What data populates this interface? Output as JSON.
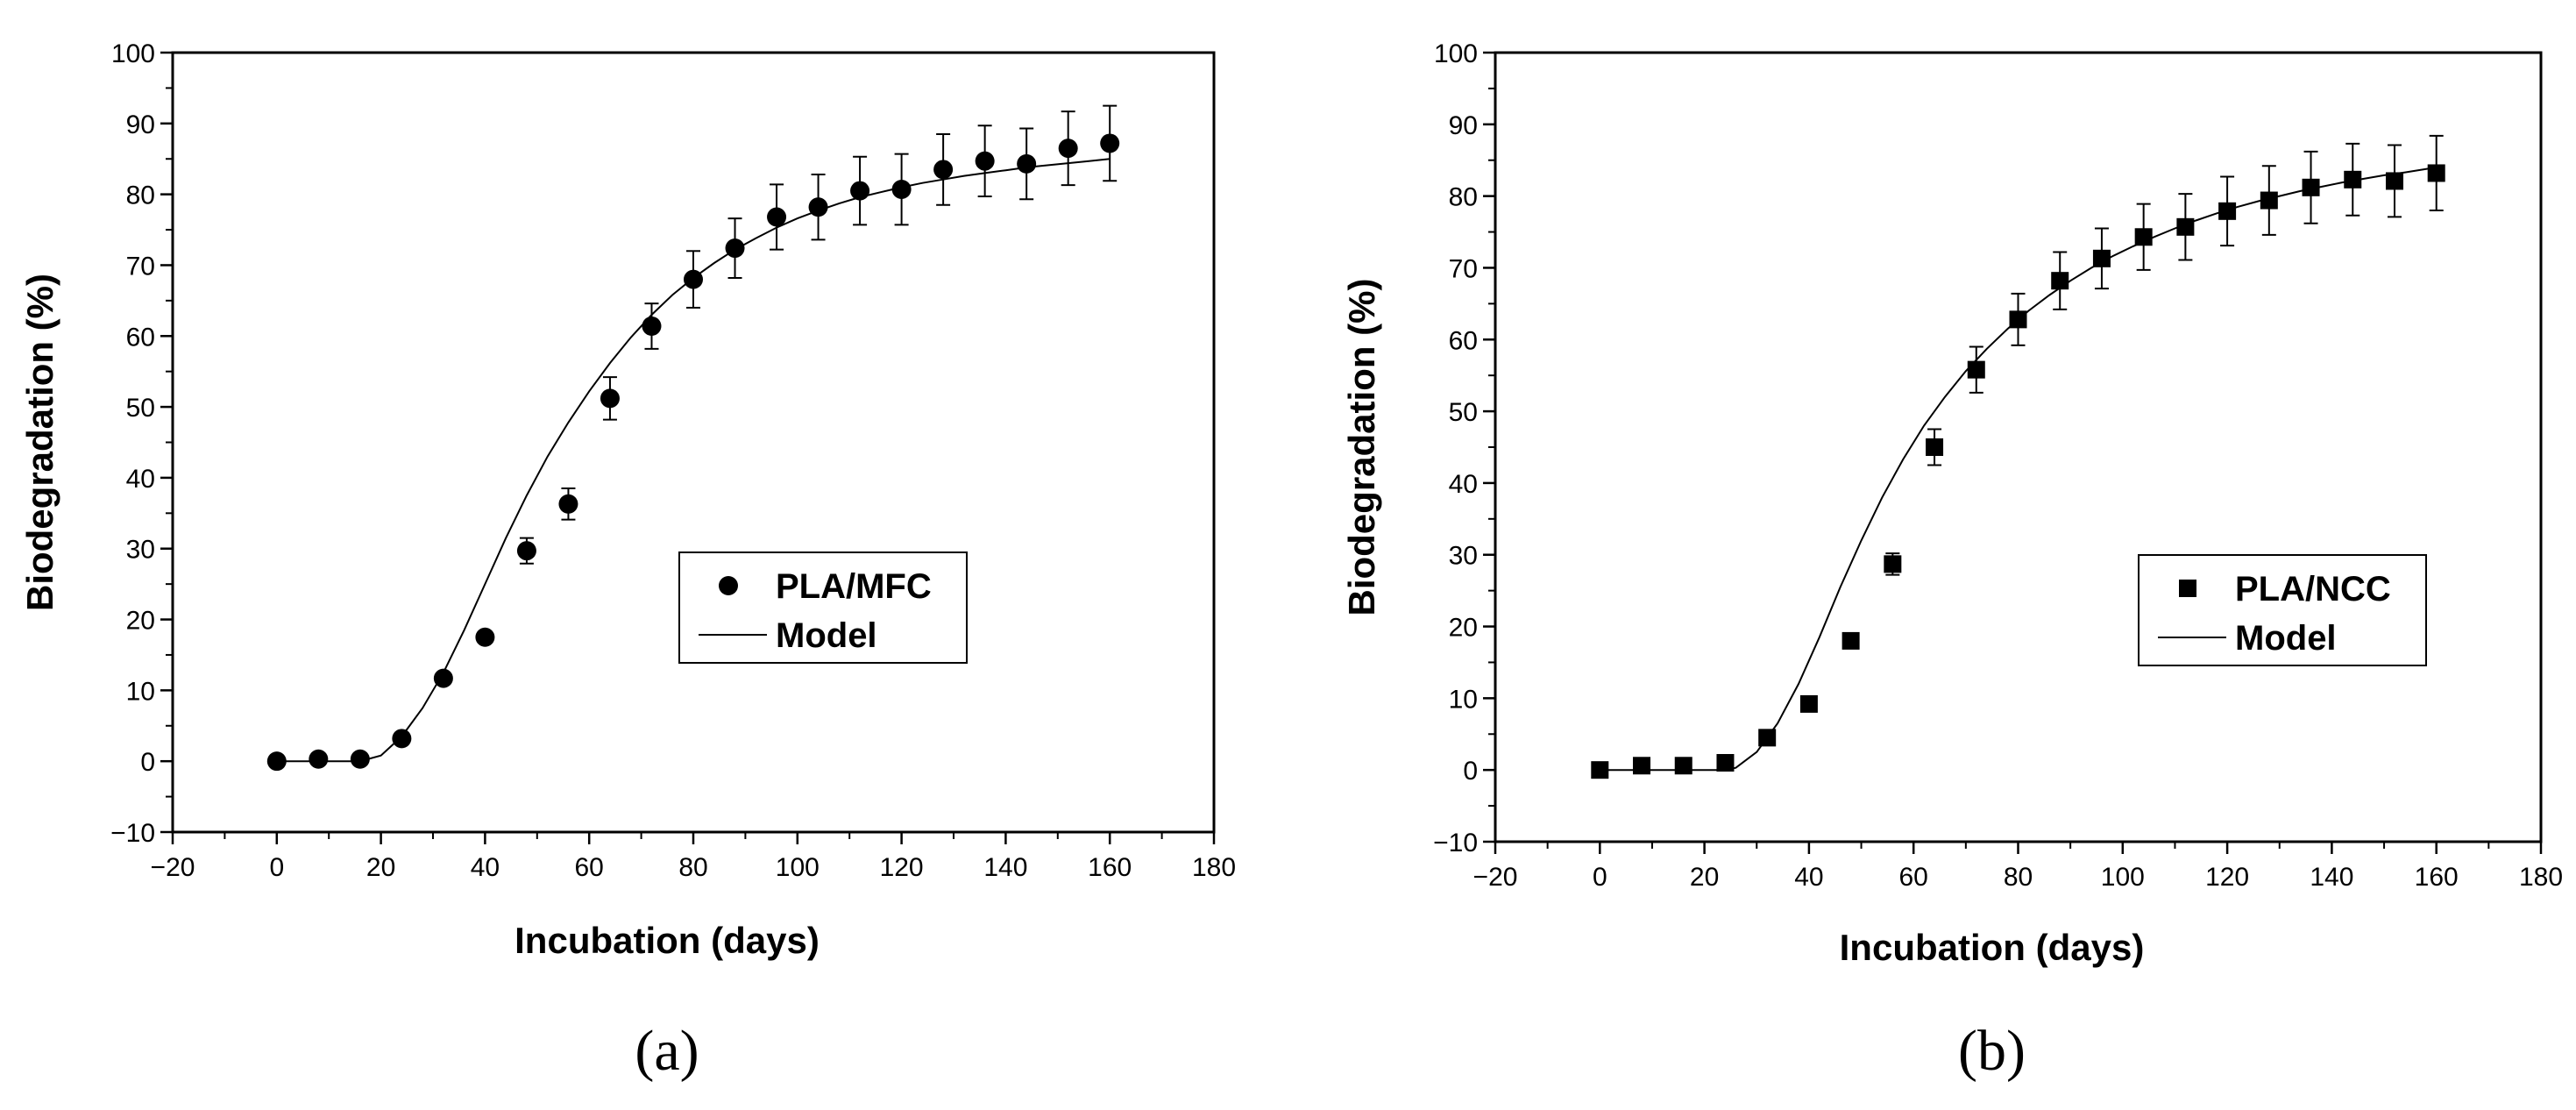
{
  "chart_data": [
    {
      "type": "scatter",
      "panel_label": "(a)",
      "xlabel": "Incubation (days)",
      "ylabel": "Biodegradation (%)",
      "xlim": [
        -20,
        180
      ],
      "ylim": [
        -10,
        100
      ],
      "xticks": [
        -20,
        0,
        20,
        40,
        60,
        80,
        100,
        120,
        140,
        160,
        180
      ],
      "yticks": [
        -10,
        0,
        10,
        20,
        30,
        40,
        50,
        60,
        70,
        80,
        90,
        100
      ],
      "legend_position": "center-right",
      "series": [
        {
          "name": "PLA/MFC",
          "marker": "circle",
          "x": [
            0,
            8,
            16,
            24,
            32,
            40,
            48,
            56,
            64,
            72,
            80,
            88,
            96,
            104,
            112,
            120,
            128,
            136,
            144,
            152,
            160
          ],
          "y": [
            0,
            0.3,
            0.3,
            3.2,
            11.7,
            17.5,
            29.7,
            36.3,
            51.2,
            61.4,
            68,
            72.4,
            76.8,
            78.2,
            80.5,
            80.7,
            83.5,
            84.7,
            84.3,
            86.5,
            87.2
          ],
          "err": [
            0,
            0,
            0,
            0,
            0,
            0,
            1.8,
            2.2,
            3,
            3.2,
            4,
            4.2,
            4.6,
            4.6,
            4.8,
            5,
            5,
            5,
            5,
            5.2,
            5.3
          ]
        },
        {
          "name": "Model",
          "line": true,
          "x": [
            0,
            8,
            16,
            20,
            24,
            28,
            32,
            36,
            40,
            44,
            48,
            52,
            56,
            60,
            64,
            68,
            72,
            76,
            80,
            84,
            88,
            92,
            96,
            100,
            104,
            108,
            112,
            116,
            120,
            124,
            128,
            132,
            136,
            140,
            144,
            148,
            152,
            156,
            160
          ],
          "y": [
            0,
            0,
            0,
            0.8,
            3.5,
            7.5,
            12.5,
            18.5,
            25,
            31.5,
            37.5,
            43,
            47.8,
            52.2,
            56.2,
            59.8,
            63,
            65.8,
            68.2,
            70.3,
            72.2,
            73.8,
            75.3,
            76.6,
            77.7,
            78.7,
            79.6,
            80.3,
            81,
            81.6,
            82.1,
            82.6,
            83,
            83.4,
            83.8,
            84.1,
            84.4,
            84.7,
            85
          ]
        }
      ]
    },
    {
      "type": "scatter",
      "panel_label": "(b)",
      "xlabel": "Incubation (days)",
      "ylabel": "Biodegradation (%)",
      "xlim": [
        -20,
        180
      ],
      "ylim": [
        -10,
        100
      ],
      "xticks": [
        -20,
        0,
        20,
        40,
        60,
        80,
        100,
        120,
        140,
        160,
        180
      ],
      "yticks": [
        -10,
        0,
        10,
        20,
        30,
        40,
        50,
        60,
        70,
        80,
        90,
        100
      ],
      "legend_position": "center-right",
      "series": [
        {
          "name": "PLA/NCC",
          "marker": "square",
          "x": [
            0,
            8,
            16,
            24,
            32,
            40,
            48,
            56,
            64,
            72,
            80,
            88,
            96,
            104,
            112,
            120,
            128,
            136,
            144,
            152,
            160
          ],
          "y": [
            0,
            0.6,
            0.6,
            1,
            4.5,
            9.2,
            18,
            28.7,
            45,
            55.8,
            62.8,
            68.2,
            71.3,
            74.3,
            75.7,
            77.9,
            79.4,
            81.2,
            82.3,
            82.1,
            83.2
          ],
          "err": [
            0,
            0,
            0,
            0,
            0,
            0,
            0,
            1.5,
            2.5,
            3.2,
            3.6,
            4,
            4.2,
            4.6,
            4.6,
            4.8,
            4.8,
            5,
            5,
            5,
            5.2
          ]
        },
        {
          "name": "Model",
          "line": true,
          "x": [
            0,
            8,
            16,
            24,
            26,
            30,
            34,
            38,
            42,
            46,
            50,
            54,
            58,
            62,
            66,
            70,
            74,
            78,
            82,
            86,
            90,
            94,
            98,
            102,
            106,
            110,
            114,
            118,
            122,
            126,
            130,
            134,
            138,
            142,
            146,
            150,
            154,
            160
          ],
          "y": [
            0,
            0,
            0,
            0,
            0.3,
            2.5,
            6.5,
            12,
            18.5,
            25.5,
            32,
            38,
            43.3,
            48,
            52,
            55.6,
            58.7,
            61.5,
            64,
            66.2,
            68.2,
            70,
            71.6,
            73,
            74.3,
            75.5,
            76.6,
            77.6,
            78.5,
            79.3,
            80,
            80.7,
            81.3,
            81.9,
            82.4,
            82.9,
            83.3,
            84
          ]
        }
      ]
    }
  ]
}
